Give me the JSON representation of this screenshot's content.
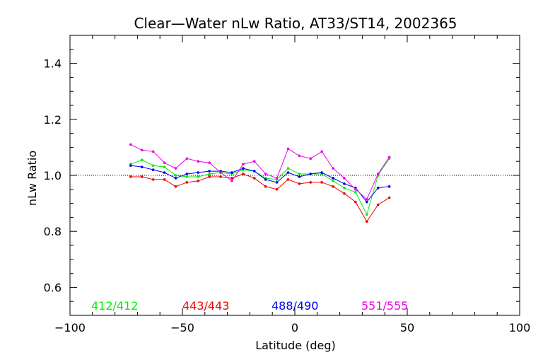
{
  "chart_data": {
    "type": "line",
    "title": "Clear—Water nLw Ratio, AT33/ST14, 2002365",
    "xlabel": "Latitude (deg)",
    "ylabel": "nLw Ratio",
    "xlim": [
      -100,
      100
    ],
    "ylim": [
      0.5,
      1.5
    ],
    "x_ticks": [
      -100,
      -50,
      0,
      50,
      100
    ],
    "x_tick_labels": [
      "−100",
      "−50",
      "0",
      "50",
      "100"
    ],
    "y_ticks": [
      0.6,
      0.8,
      1.0,
      1.2,
      1.4
    ],
    "y_tick_labels": [
      "0.6",
      "0.8",
      "1.0",
      "1.2",
      "1.4"
    ],
    "reference_line": 1.0,
    "legend_placement": "bottom, inside plot",
    "x": [
      -73,
      -68,
      -63,
      -58,
      -53,
      -48,
      -43,
      -38,
      -33,
      -28,
      -23,
      -18,
      -13,
      -8,
      -3,
      2,
      7,
      12,
      17,
      22,
      27,
      32,
      37,
      42
    ],
    "series": [
      {
        "name": "412/412",
        "color": "#00ee00",
        "values": [
          1.04,
          1.055,
          1.035,
          1.03,
          1.0,
          0.995,
          0.995,
          1.005,
          1.01,
          1.005,
          1.02,
          1.015,
          0.99,
          0.985,
          1.025,
          1.005,
          1.005,
          1.005,
          0.98,
          0.955,
          0.94,
          0.86,
          1.0,
          1.06
        ]
      },
      {
        "name": "443/443",
        "color": "#ee0000",
        "values": [
          0.995,
          0.995,
          0.985,
          0.985,
          0.96,
          0.975,
          0.98,
          0.995,
          0.995,
          0.99,
          1.005,
          0.99,
          0.96,
          0.95,
          0.985,
          0.97,
          0.975,
          0.975,
          0.96,
          0.935,
          0.905,
          0.835,
          0.895,
          0.92
        ]
      },
      {
        "name": "488/490",
        "color": "#0000ee",
        "values": [
          1.035,
          1.03,
          1.02,
          1.01,
          0.99,
          1.005,
          1.01,
          1.015,
          1.015,
          1.01,
          1.025,
          1.015,
          0.985,
          0.975,
          1.01,
          0.995,
          1.005,
          1.01,
          0.99,
          0.97,
          0.955,
          0.905,
          0.955,
          0.96
        ]
      },
      {
        "name": "551/555",
        "color": "#ee00ee",
        "values": [
          1.11,
          1.09,
          1.085,
          1.045,
          1.025,
          1.06,
          1.05,
          1.045,
          1.01,
          0.98,
          1.04,
          1.05,
          1.005,
          0.99,
          1.095,
          1.07,
          1.06,
          1.085,
          1.025,
          0.99,
          0.95,
          0.915,
          1.005,
          1.065
        ]
      }
    ]
  }
}
